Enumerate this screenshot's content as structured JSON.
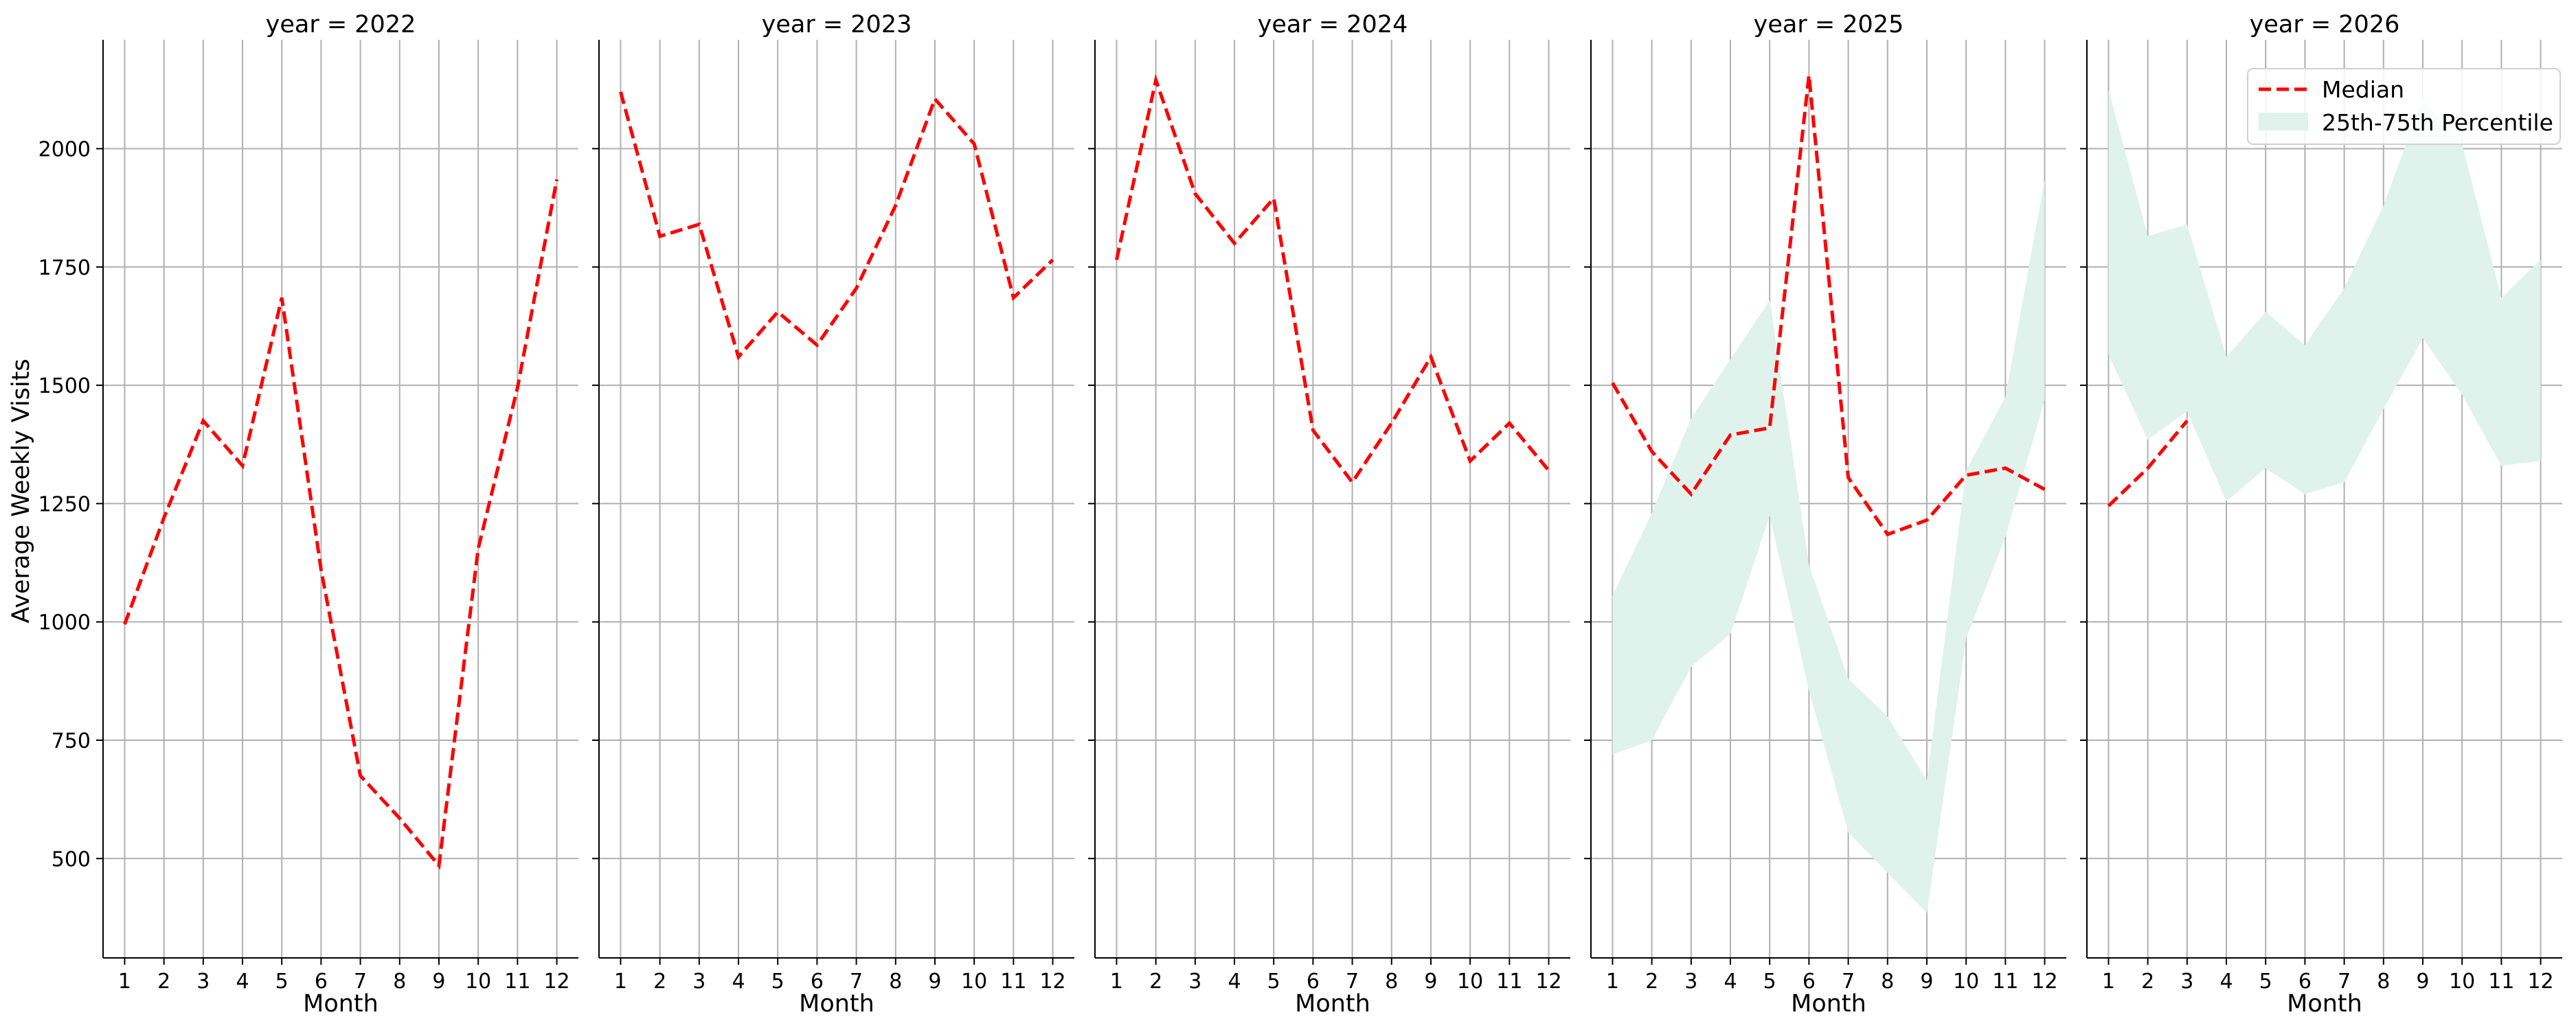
{
  "chart_data": {
    "type": "line",
    "facet": "year",
    "ylabel": "Average Weekly Visits",
    "xlabel": "Month",
    "x": [
      1,
      2,
      3,
      4,
      5,
      6,
      7,
      8,
      9,
      10,
      11,
      12
    ],
    "ylim": [
      290,
      2230
    ],
    "xlim": [
      0.45,
      12.55
    ],
    "yticks": [
      500,
      750,
      1000,
      1250,
      1500,
      1750,
      2000
    ],
    "grid": true,
    "legend": {
      "position": "top-right",
      "panel": 4,
      "entries": [
        {
          "label": "Median",
          "color": "#ff0000",
          "style": "dashed"
        },
        {
          "label": "25th-75th Percentile",
          "color": "#dff2ec",
          "style": "band"
        }
      ]
    },
    "median_color": "#ff0000",
    "band_color": "#dff2ec",
    "panels": [
      {
        "title": "year = 2022",
        "median": [
          995,
          1220,
          1425,
          1330,
          1685,
          1110,
          675,
          585,
          485,
          1155,
          1495,
          1935
        ],
        "band": null
      },
      {
        "title": "year = 2023",
        "median": [
          2120,
          1815,
          1840,
          1560,
          1655,
          1585,
          1705,
          1880,
          2105,
          2010,
          1685,
          1765
        ],
        "band": null
      },
      {
        "title": "year = 2024",
        "median": [
          1765,
          2145,
          1905,
          1800,
          1895,
          1405,
          1295,
          1420,
          1560,
          1340,
          1420,
          1320
        ],
        "band": null
      },
      {
        "title": "year = 2025",
        "median": [
          1505,
          1360,
          1270,
          1395,
          1410,
          2155,
          1305,
          1185,
          1215,
          1310,
          1325,
          1280
        ],
        "band": {
          "low": [
            720,
            750,
            905,
            975,
            1225,
            855,
            555,
            470,
            385,
            965,
            1180,
            1470
          ],
          "high": [
            1055,
            1230,
            1430,
            1555,
            1680,
            1120,
            880,
            800,
            665,
            1320,
            1475,
            1935
          ]
        }
      },
      {
        "title": "year = 2026",
        "median": [
          1245,
          1325,
          1425,
          null,
          null,
          null,
          null,
          null,
          null,
          null,
          null,
          null
        ],
        "band": {
          "low": [
            1565,
            1385,
            1445,
            1255,
            1325,
            1270,
            1295,
            1450,
            1600,
            1480,
            1330,
            1340
          ],
          "high": [
            2125,
            1815,
            1840,
            1560,
            1655,
            1585,
            1705,
            1880,
            2105,
            2010,
            1685,
            1765
          ]
        }
      }
    ]
  }
}
